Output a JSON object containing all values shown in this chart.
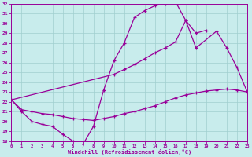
{
  "xlabel": "Windchill (Refroidissement éolien,°C)",
  "bg_color": "#c8ecec",
  "grid_color": "#a0cfcf",
  "line_color": "#990099",
  "xlim": [
    0,
    23
  ],
  "ylim": [
    18,
    32
  ],
  "xticks": [
    0,
    1,
    2,
    3,
    4,
    5,
    6,
    7,
    8,
    9,
    10,
    11,
    12,
    13,
    14,
    15,
    16,
    17,
    18,
    19,
    20,
    21,
    22,
    23
  ],
  "yticks": [
    18,
    19,
    20,
    21,
    22,
    23,
    24,
    25,
    26,
    27,
    28,
    29,
    30,
    31,
    32
  ],
  "curve1_x": [
    0,
    1,
    2,
    3,
    4,
    5,
    6,
    7,
    8,
    9,
    10,
    11,
    12,
    13,
    14,
    15,
    16,
    17,
    18,
    19
  ],
  "curve1_y": [
    22.2,
    21.0,
    20.0,
    19.7,
    19.5,
    18.7,
    18.0,
    17.7,
    19.5,
    23.2,
    26.2,
    28.0,
    30.6,
    31.3,
    31.8,
    32.0,
    32.2,
    30.3,
    29.0,
    29.3
  ],
  "curve2_x": [
    0,
    10,
    11,
    12,
    13,
    14,
    15,
    16,
    17,
    18,
    20,
    21,
    22,
    23
  ],
  "curve2_y": [
    22.2,
    24.8,
    25.3,
    25.8,
    26.4,
    27.0,
    27.5,
    28.1,
    30.3,
    27.5,
    29.2,
    27.5,
    25.5,
    23.0
  ],
  "curve3_x": [
    0,
    1,
    2,
    3,
    4,
    5,
    6,
    7,
    8,
    9,
    10,
    11,
    12,
    13,
    14,
    15,
    16,
    17,
    18,
    19,
    20,
    21,
    22,
    23
  ],
  "curve3_y": [
    22.2,
    21.2,
    21.0,
    20.8,
    20.7,
    20.5,
    20.3,
    20.2,
    20.1,
    20.3,
    20.5,
    20.8,
    21.0,
    21.3,
    21.6,
    22.0,
    22.4,
    22.7,
    22.9,
    23.1,
    23.2,
    23.3,
    23.2,
    23.0
  ]
}
